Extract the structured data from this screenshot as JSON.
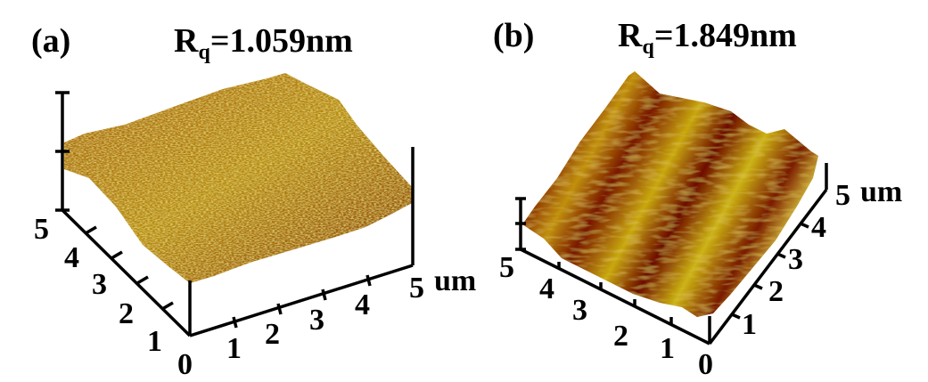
{
  "panels": [
    {
      "label": "(a)",
      "roughness_symbol": "R",
      "roughness_subscript": "q",
      "roughness_value": "=1.059nm",
      "x_ticks": [
        "0",
        "1",
        "2",
        "3",
        "4",
        "5"
      ],
      "y_ticks": [
        "1",
        "2",
        "3",
        "4",
        "5"
      ],
      "unit": "um",
      "surface": "fine-grained spiky",
      "colors": {
        "low": "#7a1a00",
        "mid": "#b8860b",
        "high": "#d8d040"
      }
    },
    {
      "label": "(b)",
      "roughness_symbol": "R",
      "roughness_subscript": "q",
      "roughness_value": "=1.849nm",
      "x_ticks": [
        "0",
        "1",
        "2",
        "3",
        "4",
        "5"
      ],
      "y_ticks": [
        "1",
        "2",
        "3",
        "4",
        "5"
      ],
      "unit": "um",
      "surface": "striped ridges",
      "colors": {
        "low": "#6e0c00",
        "mid": "#a84a08",
        "high": "#cdbb10"
      }
    }
  ]
}
